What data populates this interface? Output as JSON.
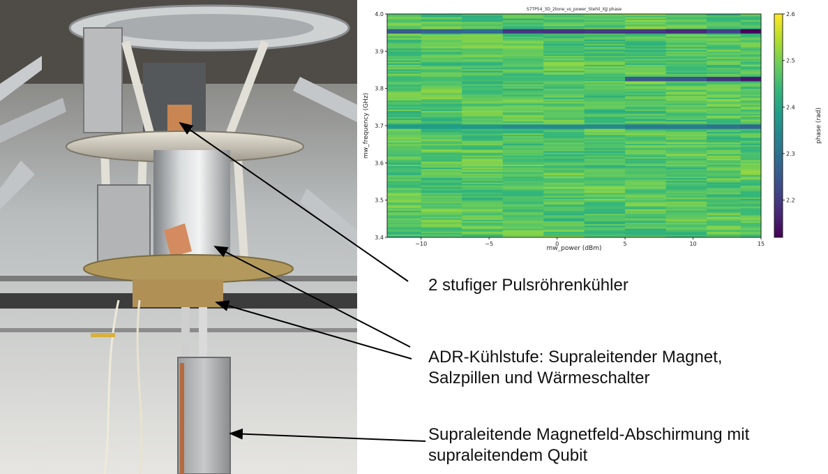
{
  "chart_data": {
    "type": "heatmap",
    "title": "S7TP54_3D_2tone_vs_power_Stehli_XJJ phase",
    "xlabel": "mw_power (dBm)",
    "ylabel": "mw_frequency (GHz)",
    "xlim": [
      -12.5,
      15
    ],
    "ylim": [
      3.4,
      4.0
    ],
    "xticks": [
      "−10",
      "−5",
      "0",
      "5",
      "10",
      "15"
    ],
    "xtick_values": [
      -10,
      -5,
      0,
      5,
      10,
      15
    ],
    "yticks": [
      "3.4",
      "3.5",
      "3.6",
      "3.7",
      "3.8",
      "3.9",
      "4.0"
    ],
    "ytick_values": [
      3.4,
      3.5,
      3.6,
      3.7,
      3.8,
      3.9,
      4.0
    ],
    "x_columns": [
      -11.5,
      -8.5,
      -5.5,
      -2.5,
      0.5,
      3.5,
      6.5,
      9.5,
      12.5,
      14.5
    ],
    "colorbar": {
      "label": "phase (rad)",
      "ticks": [
        "2.2",
        "2.3",
        "2.4",
        "2.5",
        "2.6"
      ],
      "tick_values": [
        2.2,
        2.3,
        2.4,
        2.5,
        2.6
      ],
      "range": [
        2.12,
        2.6
      ],
      "colormap": "viridis"
    },
    "features": [
      {
        "frequency": 3.955,
        "values": [
          2.25,
          2.28,
          2.28,
          2.2,
          2.2,
          2.2,
          2.2,
          2.18,
          2.22,
          2.13
        ]
      },
      {
        "frequency": 3.827,
        "values": [
          2.45,
          2.45,
          2.45,
          2.45,
          2.45,
          2.45,
          2.25,
          2.25,
          2.2,
          2.15
        ]
      },
      {
        "frequency": 3.699,
        "values": [
          2.38,
          2.38,
          2.38,
          2.35,
          2.35,
          2.35,
          2.32,
          2.32,
          2.3,
          2.28
        ]
      }
    ],
    "background_phase": 2.47
  },
  "annotations": [
    {
      "text": "2 stufiger Pulsröhrenkühler"
    },
    {
      "text": "ADR-Kühlstufe: Supraleitender Magnet,"
    },
    {
      "text": "Salzpillen und Wärmeschalter"
    },
    {
      "text": "Supraleitende Magnetfeld-Abschirmung mit"
    },
    {
      "text": "supraleitendem Qubit"
    }
  ]
}
